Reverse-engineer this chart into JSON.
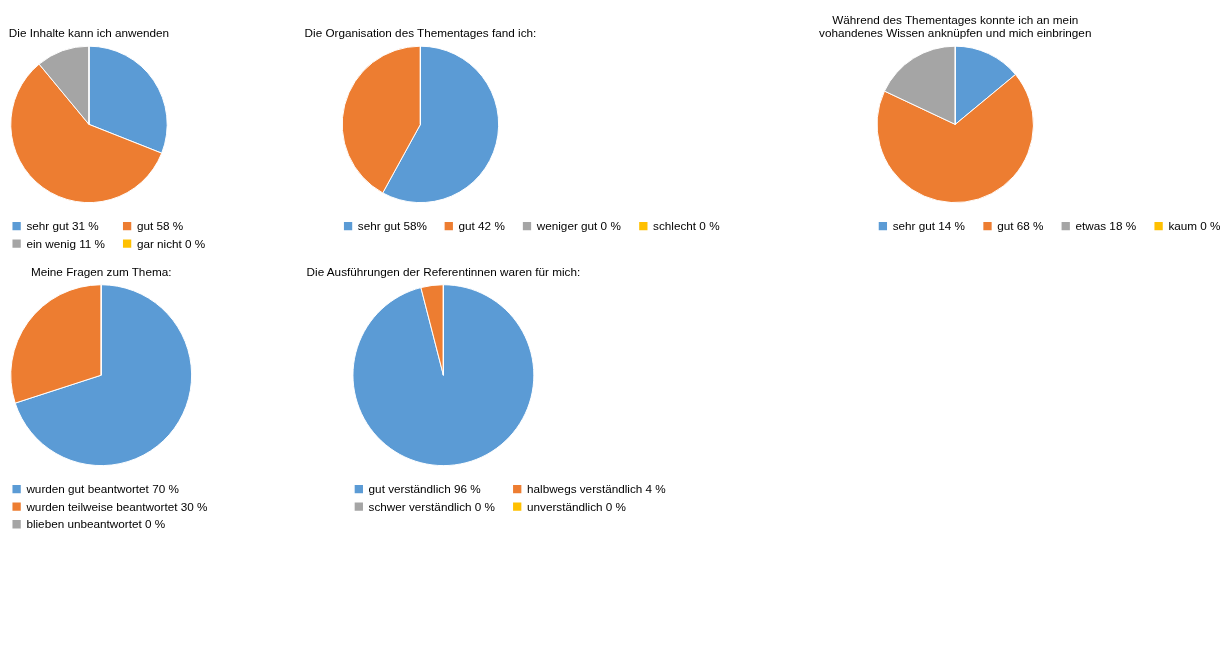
{
  "chart_data": [
    {
      "type": "pie",
      "title": "Die Inhalte kann ich anwenden",
      "categories": [
        "sehr gut 31 %",
        "gut 58 %",
        "ein wenig 11 %",
        "gar nicht 0 %"
      ],
      "values": [
        31,
        58,
        11,
        0
      ],
      "colors": [
        "#5b9bd5",
        "#ed7d31",
        "#a5a5a5",
        "#ffc000"
      ],
      "legend": "bottom"
    },
    {
      "type": "pie",
      "title": "Die Organisation des Thementages fand ich:",
      "categories": [
        "sehr gut 58%",
        "gut 42 %",
        "weniger gut 0 %",
        "schlecht 0 %"
      ],
      "values": [
        58,
        42,
        0,
        0
      ],
      "colors": [
        "#5b9bd5",
        "#ed7d31",
        "#a5a5a5",
        "#ffc000"
      ],
      "legend": "bottom"
    },
    {
      "type": "pie",
      "title": "Während des Thementages konnte ich an mein vohandenes Wissen anknüpfen und mich einbringen",
      "categories": [
        "sehr gut 14 %",
        "gut 68 %",
        "etwas 18 %",
        "kaum 0 %"
      ],
      "values": [
        14,
        68,
        18,
        0
      ],
      "colors": [
        "#5b9bd5",
        "#ed7d31",
        "#a5a5a5",
        "#ffc000"
      ],
      "legend": "bottom"
    },
    {
      "type": "pie",
      "title": "Meine Fragen zum Thema:",
      "categories": [
        "wurden gut beantwortet 70 %",
        "wurden teilweise beantwortet 30 %",
        "blieben unbeantwortet 0 %"
      ],
      "values": [
        70,
        30,
        0
      ],
      "colors": [
        "#5b9bd5",
        "#ed7d31",
        "#a5a5a5"
      ],
      "legend": "bottom"
    },
    {
      "type": "pie",
      "title": "Die Ausführungen der Referentinnen waren für mich:",
      "categories": [
        "gut verständlich 96 %",
        "halbwegs verständlich 4 %",
        "schwer verständlich 0 %",
        "unverständlich 0 %"
      ],
      "values": [
        96,
        4,
        0,
        0
      ],
      "colors": [
        "#5b9bd5",
        "#ed7d31",
        "#a5a5a5",
        "#ffc000"
      ],
      "legend": "bottom"
    }
  ]
}
